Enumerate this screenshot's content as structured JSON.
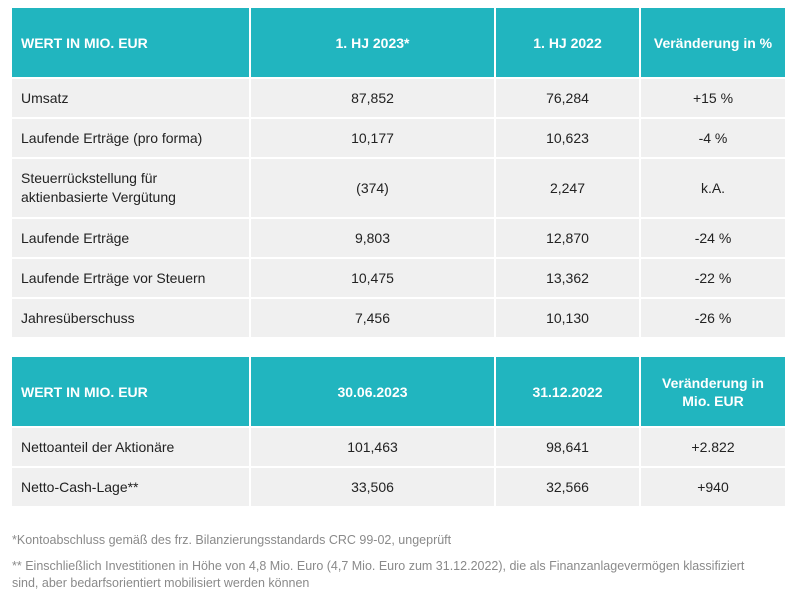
{
  "table1": {
    "headers": [
      "WERT IN MIO. EUR",
      "1. HJ 2023*",
      "1. HJ 2022",
      "Veränderung in %"
    ],
    "rows": [
      [
        "Umsatz",
        "87,852",
        "76,284",
        "+15 %"
      ],
      [
        "Laufende Erträge (pro forma)",
        "10,177",
        "10,623",
        "-4 %"
      ],
      [
        "Steuerrückstellung für aktienbasierte Vergütung",
        "(374)",
        "2,247",
        "k.A."
      ],
      [
        "Laufende Erträge",
        "9,803",
        "12,870",
        "-24 %"
      ],
      [
        "Laufende Erträge vor Steuern",
        "10,475",
        "13,362",
        "-22 %"
      ],
      [
        "Jahresüberschuss",
        "7,456",
        "10,130",
        "-26 %"
      ]
    ]
  },
  "table2": {
    "headers": [
      "WERT IN MIO. EUR",
      "30.06.2023",
      "31.12.2022",
      "Veränderung in Mio. EUR"
    ],
    "rows": [
      [
        "Nettoanteil der Aktionäre",
        "101,463",
        "98,641",
        "+2.822"
      ],
      [
        "Netto-Cash-Lage**",
        "33,506",
        "32,566",
        "+940"
      ]
    ]
  },
  "footnotes": {
    "note1": "*Kontoabschluss gemäß des frz. Bilanzierungsstandards CRC 99-02, ungeprüft",
    "note2": "** Einschließlich Investitionen in Höhe von 4,8 Mio. Euro (4,7 Mio. Euro zum 31.12.2022), die als Finanzanlagevermögen klassifiziert sind, aber bedarfsorientiert mobilisiert werden können"
  },
  "colors": {
    "header_bg": "#21b5bf",
    "row_bg": "#f0f0f0",
    "footnote_text": "#8a8a8a"
  }
}
